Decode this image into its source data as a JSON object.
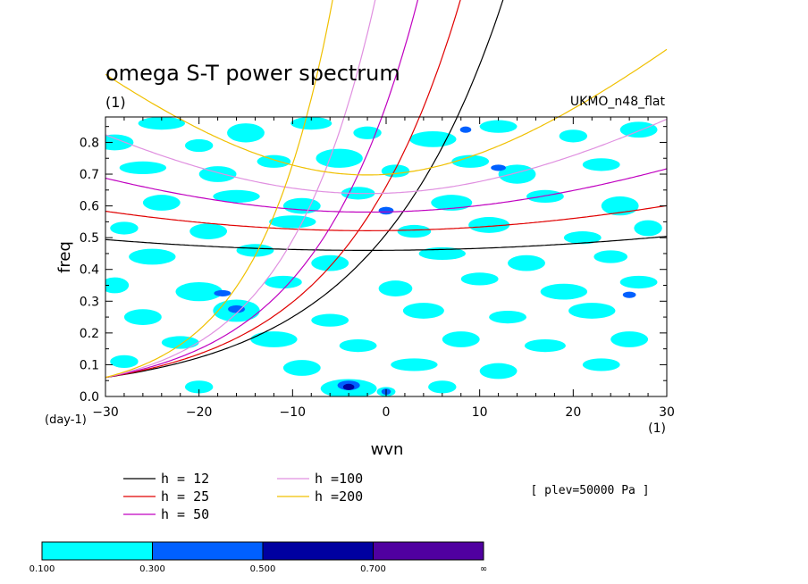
{
  "chart_data": {
    "type": "heatmap",
    "title": "omega S-T power spectrum",
    "title_unit": "(1)",
    "model_label": "UKMO_n48_flat",
    "xlabel": "wvn",
    "ylabel": "freq",
    "x_unit": "(1)",
    "y_unit": "(day-1)",
    "xlim": [
      -30,
      30
    ],
    "ylim": [
      0,
      0.88
    ],
    "xticks": [
      -30,
      -20,
      -10,
      0,
      10,
      20,
      30
    ],
    "yticks": [
      0.0,
      0.1,
      0.2,
      0.3,
      0.4,
      0.5,
      0.6,
      0.7,
      0.8
    ],
    "annotation": "[ plev=50000 Pa ]",
    "curve_legend": [
      {
        "text": "h = 12",
        "h": 12,
        "color": "#000000"
      },
      {
        "text": "h = 25",
        "h": 25,
        "color": "#e00000"
      },
      {
        "text": "h = 50",
        "h": 50,
        "color": "#c000c0"
      },
      {
        "text": "h =100",
        "h": 100,
        "color": "#e090e0"
      },
      {
        "text": "h =200",
        "h": 200,
        "color": "#f0c000"
      }
    ],
    "colorbar": {
      "levels": [
        "0.100",
        "0.300",
        "0.500",
        "0.700",
        "∞"
      ],
      "colors": [
        "#00ffff",
        "#0060ff",
        "#0000a0",
        "#5000a0"
      ]
    },
    "regions": [
      {
        "x": -29,
        "y": 0.8,
        "rx": 2.0,
        "ry": 0.025,
        "level": 0
      },
      {
        "x": -24,
        "y": 0.86,
        "rx": 2.5,
        "ry": 0.02,
        "level": 0
      },
      {
        "x": -20,
        "y": 0.79,
        "rx": 1.5,
        "ry": 0.02,
        "level": 0
      },
      {
        "x": -15,
        "y": 0.83,
        "rx": 2.0,
        "ry": 0.03,
        "level": 0
      },
      {
        "x": -8,
        "y": 0.86,
        "rx": 2.2,
        "ry": 0.02,
        "level": 0
      },
      {
        "x": -2,
        "y": 0.83,
        "rx": 1.5,
        "ry": 0.02,
        "level": 0
      },
      {
        "x": 5,
        "y": 0.81,
        "rx": 2.5,
        "ry": 0.025,
        "level": 0
      },
      {
        "x": 12,
        "y": 0.85,
        "rx": 2.0,
        "ry": 0.02,
        "level": 0
      },
      {
        "x": 20,
        "y": 0.82,
        "rx": 1.5,
        "ry": 0.02,
        "level": 0
      },
      {
        "x": 27,
        "y": 0.84,
        "rx": 2.0,
        "ry": 0.025,
        "level": 0
      },
      {
        "x": -26,
        "y": 0.72,
        "rx": 2.5,
        "ry": 0.02,
        "level": 0
      },
      {
        "x": -18,
        "y": 0.7,
        "rx": 2.0,
        "ry": 0.025,
        "level": 0
      },
      {
        "x": -12,
        "y": 0.74,
        "rx": 1.8,
        "ry": 0.02,
        "level": 0
      },
      {
        "x": -5,
        "y": 0.75,
        "rx": 2.5,
        "ry": 0.03,
        "level": 0
      },
      {
        "x": 1,
        "y": 0.71,
        "rx": 1.5,
        "ry": 0.02,
        "level": 0
      },
      {
        "x": 9,
        "y": 0.74,
        "rx": 2.0,
        "ry": 0.02,
        "level": 0
      },
      {
        "x": 14,
        "y": 0.7,
        "rx": 2.0,
        "ry": 0.03,
        "level": 0
      },
      {
        "x": 23,
        "y": 0.73,
        "rx": 2.0,
        "ry": 0.02,
        "level": 0
      },
      {
        "x": -24,
        "y": 0.61,
        "rx": 2.0,
        "ry": 0.025,
        "level": 0
      },
      {
        "x": -16,
        "y": 0.63,
        "rx": 2.5,
        "ry": 0.02,
        "level": 0
      },
      {
        "x": -9,
        "y": 0.6,
        "rx": 2.0,
        "ry": 0.025,
        "level": 0
      },
      {
        "x": -3,
        "y": 0.64,
        "rx": 1.8,
        "ry": 0.02,
        "level": 0
      },
      {
        "x": 7,
        "y": 0.61,
        "rx": 2.2,
        "ry": 0.025,
        "level": 0
      },
      {
        "x": 17,
        "y": 0.63,
        "rx": 2.0,
        "ry": 0.02,
        "level": 0
      },
      {
        "x": 25,
        "y": 0.6,
        "rx": 2.0,
        "ry": 0.03,
        "level": 0
      },
      {
        "x": -28,
        "y": 0.53,
        "rx": 1.5,
        "ry": 0.02,
        "level": 0
      },
      {
        "x": -19,
        "y": 0.52,
        "rx": 2.0,
        "ry": 0.025,
        "level": 0
      },
      {
        "x": -10,
        "y": 0.55,
        "rx": 2.5,
        "ry": 0.02,
        "level": 0
      },
      {
        "x": 3,
        "y": 0.52,
        "rx": 1.8,
        "ry": 0.02,
        "level": 0
      },
      {
        "x": 11,
        "y": 0.54,
        "rx": 2.2,
        "ry": 0.025,
        "level": 0
      },
      {
        "x": 21,
        "y": 0.5,
        "rx": 2.0,
        "ry": 0.02,
        "level": 0
      },
      {
        "x": 28,
        "y": 0.53,
        "rx": 1.5,
        "ry": 0.025,
        "level": 0
      },
      {
        "x": -25,
        "y": 0.44,
        "rx": 2.5,
        "ry": 0.025,
        "level": 0
      },
      {
        "x": -14,
        "y": 0.46,
        "rx": 2.0,
        "ry": 0.02,
        "level": 0
      },
      {
        "x": -6,
        "y": 0.42,
        "rx": 2.0,
        "ry": 0.025,
        "level": 0
      },
      {
        "x": 6,
        "y": 0.45,
        "rx": 2.5,
        "ry": 0.02,
        "level": 0
      },
      {
        "x": 15,
        "y": 0.42,
        "rx": 2.0,
        "ry": 0.025,
        "level": 0
      },
      {
        "x": 24,
        "y": 0.44,
        "rx": 1.8,
        "ry": 0.02,
        "level": 0
      },
      {
        "x": -29,
        "y": 0.35,
        "rx": 1.5,
        "ry": 0.025,
        "level": 0
      },
      {
        "x": -20,
        "y": 0.33,
        "rx": 2.5,
        "ry": 0.03,
        "level": 0
      },
      {
        "x": -11,
        "y": 0.36,
        "rx": 2.0,
        "ry": 0.02,
        "level": 0
      },
      {
        "x": 1,
        "y": 0.34,
        "rx": 1.8,
        "ry": 0.025,
        "level": 0
      },
      {
        "x": 10,
        "y": 0.37,
        "rx": 2.0,
        "ry": 0.02,
        "level": 0
      },
      {
        "x": 19,
        "y": 0.33,
        "rx": 2.5,
        "ry": 0.025,
        "level": 0
      },
      {
        "x": 27,
        "y": 0.36,
        "rx": 2.0,
        "ry": 0.02,
        "level": 0
      },
      {
        "x": -26,
        "y": 0.25,
        "rx": 2.0,
        "ry": 0.025,
        "level": 0
      },
      {
        "x": -16,
        "y": 0.27,
        "rx": 2.5,
        "ry": 0.035,
        "level": 0
      },
      {
        "x": -6,
        "y": 0.24,
        "rx": 2.0,
        "ry": 0.02,
        "level": 0
      },
      {
        "x": 4,
        "y": 0.27,
        "rx": 2.2,
        "ry": 0.025,
        "level": 0
      },
      {
        "x": 13,
        "y": 0.25,
        "rx": 2.0,
        "ry": 0.02,
        "level": 0
      },
      {
        "x": 22,
        "y": 0.27,
        "rx": 2.5,
        "ry": 0.025,
        "level": 0
      },
      {
        "x": -22,
        "y": 0.17,
        "rx": 2.0,
        "ry": 0.02,
        "level": 0
      },
      {
        "x": -12,
        "y": 0.18,
        "rx": 2.5,
        "ry": 0.025,
        "level": 0
      },
      {
        "x": -3,
        "y": 0.16,
        "rx": 2.0,
        "ry": 0.02,
        "level": 0
      },
      {
        "x": 8,
        "y": 0.18,
        "rx": 2.0,
        "ry": 0.025,
        "level": 0
      },
      {
        "x": 17,
        "y": 0.16,
        "rx": 2.2,
        "ry": 0.02,
        "level": 0
      },
      {
        "x": 26,
        "y": 0.18,
        "rx": 2.0,
        "ry": 0.025,
        "level": 0
      },
      {
        "x": -28,
        "y": 0.11,
        "rx": 1.5,
        "ry": 0.02,
        "level": 0
      },
      {
        "x": -9,
        "y": 0.09,
        "rx": 2.0,
        "ry": 0.025,
        "level": 0
      },
      {
        "x": 3,
        "y": 0.1,
        "rx": 2.5,
        "ry": 0.02,
        "level": 0
      },
      {
        "x": 12,
        "y": 0.08,
        "rx": 2.0,
        "ry": 0.025,
        "level": 0
      },
      {
        "x": 23,
        "y": 0.1,
        "rx": 2.0,
        "ry": 0.02,
        "level": 0
      },
      {
        "x": -4,
        "y": 0.025,
        "rx": 3.0,
        "ry": 0.03,
        "level": 0
      },
      {
        "x": 0,
        "y": 0.015,
        "rx": 1.0,
        "ry": 0.015,
        "level": 0
      },
      {
        "x": 6,
        "y": 0.03,
        "rx": 1.5,
        "ry": 0.02,
        "level": 0
      },
      {
        "x": -20,
        "y": 0.03,
        "rx": 1.5,
        "ry": 0.02,
        "level": 0
      },
      {
        "x": 0.0,
        "y": 0.585,
        "rx": 0.8,
        "ry": 0.012,
        "level": 1
      },
      {
        "x": -17.5,
        "y": 0.325,
        "rx": 0.9,
        "ry": 0.01,
        "level": 1
      },
      {
        "x": -16,
        "y": 0.275,
        "rx": 0.9,
        "ry": 0.012,
        "level": 1
      },
      {
        "x": -4,
        "y": 0.035,
        "rx": 1.2,
        "ry": 0.015,
        "level": 1
      },
      {
        "x": 0,
        "y": 0.015,
        "rx": 0.5,
        "ry": 0.01,
        "level": 1
      },
      {
        "x": 12,
        "y": 0.72,
        "rx": 0.8,
        "ry": 0.01,
        "level": 1
      },
      {
        "x": 8.5,
        "y": 0.84,
        "rx": 0.6,
        "ry": 0.01,
        "level": 1
      },
      {
        "x": 26,
        "y": 0.32,
        "rx": 0.7,
        "ry": 0.01,
        "level": 1
      },
      {
        "x": -4,
        "y": 0.03,
        "rx": 0.6,
        "ry": 0.01,
        "level": 2
      }
    ]
  }
}
